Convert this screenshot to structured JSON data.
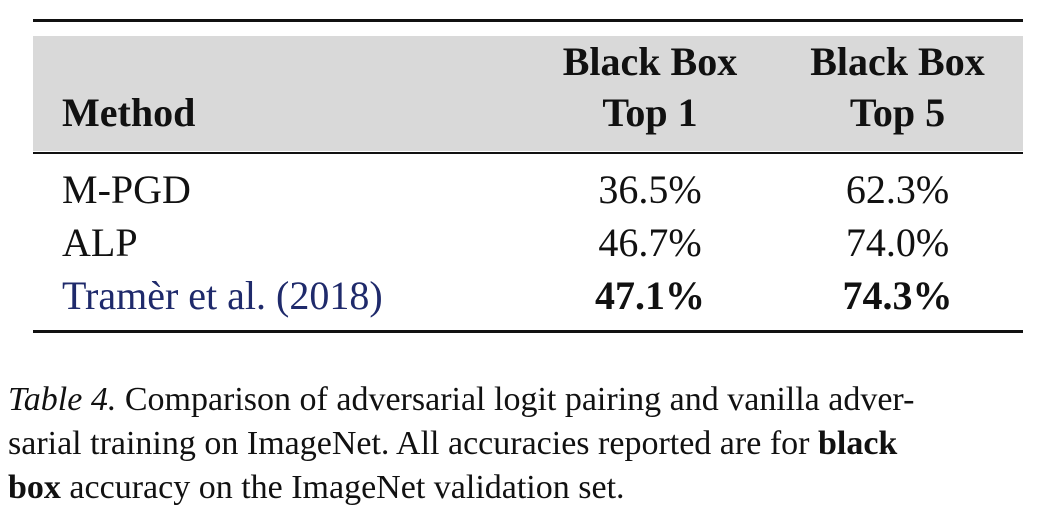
{
  "table": {
    "headers": {
      "method": "Method",
      "col1_line1": "Black Box",
      "col1_line2": "Top 1",
      "col2_line1": "Black Box",
      "col2_line2": "Top 5"
    },
    "rows": [
      {
        "method": "M-PGD",
        "top1": "36.5%",
        "top5": "62.3%",
        "bold": false
      },
      {
        "method": "ALP",
        "top1": "46.7%",
        "top5": "74.0%",
        "bold": false
      },
      {
        "method": "Tramèr et al. (2018)",
        "top1": "47.1%",
        "top5": "74.3%",
        "bold": true
      }
    ],
    "header_background": "#d9d9d9",
    "citation_color": "#1f2a6b"
  },
  "caption": {
    "label": "Table 4.",
    "text_part1": " Comparison of adversarial logit pairing and vanilla adversarial training on ImageNet. All accuracies reported are for ",
    "bold_part1": "black",
    "bold_part2": "box",
    "text_part2": " accuracy on the ImageNet validation set.",
    "line1_start": " Comparison of adversarial logit pairing and vanilla adver-",
    "line2_start": "sarial training on ImageNet. All accuracies reported are for ",
    "line3_end": " accuracy on the ImageNet validation set."
  }
}
